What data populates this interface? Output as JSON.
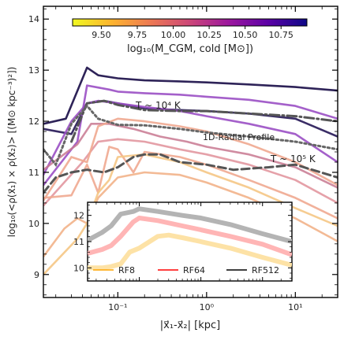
{
  "chart_data": {
    "type": "line",
    "xscale": "log",
    "xlim": [
      0.0145,
      30
    ],
    "ylim": [
      8.55,
      14.25
    ],
    "xlabel": "|x⃗₁-x⃗₂| [kpc]",
    "ylabel": "log₁₀(<ρ(x⃗₁) × ρ(x⃗₂)> [(M⊙ kpc⁻³)²])",
    "x_ticks": [
      0.1,
      1,
      10
    ],
    "x_tick_labels": [
      "10⁻¹",
      "10⁰",
      "10¹"
    ],
    "y_ticks": [
      9,
      10,
      11,
      12,
      13,
      14
    ],
    "grid": false,
    "colorbar": {
      "label": "log₁₀(M_CGM, cold [M⊙])",
      "range": [
        9.3,
        10.93
      ],
      "ticks": [
        "9.50",
        "9.75",
        "10.00",
        "10.25",
        "10.50",
        "10.75"
      ],
      "tick_values": [
        9.5,
        9.75,
        10.0,
        10.25,
        10.5,
        10.75
      ],
      "colormap": "plasma_r",
      "stops": [
        "#f0f921",
        "#fdb42f",
        "#ed7953",
        "#cc4778",
        "#9c179e",
        "#5c01a6",
        "#0d0887"
      ]
    },
    "series": [
      {
        "color": "#2e2358",
        "alpha": 1.0,
        "x": [
          0.0145,
          0.026,
          0.045,
          0.06,
          0.1,
          0.2,
          0.5,
          1,
          3,
          10,
          30
        ],
        "y": [
          11.95,
          12.05,
          13.05,
          12.9,
          12.84,
          12.8,
          12.78,
          12.76,
          12.72,
          12.67,
          12.6
        ]
      },
      {
        "color": "#3a2d66",
        "alpha": 1.0,
        "x": [
          0.0145,
          0.03,
          0.045,
          0.07,
          0.1,
          0.2,
          0.5,
          1,
          3,
          10,
          30
        ],
        "y": [
          11.85,
          11.75,
          12.35,
          12.4,
          12.35,
          12.25,
          12.22,
          12.2,
          12.15,
          12.05,
          11.7
        ]
      },
      {
        "color": "#9a4fc4",
        "alpha": 0.9,
        "x": [
          0.0145,
          0.035,
          0.045,
          0.08,
          0.1,
          0.2,
          0.5,
          1,
          3,
          10,
          30
        ],
        "y": [
          10.75,
          11.6,
          12.7,
          12.62,
          12.58,
          12.55,
          12.52,
          12.48,
          12.42,
          12.3,
          12.05
        ]
      },
      {
        "color": "#9a4fc4",
        "alpha": 0.9,
        "x": [
          0.0145,
          0.03,
          0.045,
          0.06,
          0.1,
          0.2,
          0.5,
          1,
          3,
          10,
          30
        ],
        "y": [
          10.95,
          12.0,
          12.35,
          12.4,
          12.35,
          12.28,
          12.2,
          12.1,
          11.95,
          11.75,
          11.2
        ]
      },
      {
        "color": "#c87890",
        "alpha": 0.85,
        "x": [
          0.0145,
          0.035,
          0.05,
          0.08,
          0.15,
          0.3,
          0.6,
          1,
          3,
          10,
          30
        ],
        "y": [
          11.05,
          11.55,
          11.95,
          11.95,
          11.85,
          11.7,
          11.6,
          11.5,
          11.35,
          11.1,
          10.7
        ]
      },
      {
        "color": "#e0909a",
        "alpha": 0.85,
        "x": [
          0.0145,
          0.04,
          0.06,
          0.1,
          0.2,
          0.5,
          1,
          3,
          10,
          30
        ],
        "y": [
          10.35,
          11.2,
          11.6,
          11.65,
          11.6,
          11.45,
          11.35,
          11.15,
          10.85,
          10.4
        ]
      },
      {
        "color": "#f0a890",
        "alpha": 0.9,
        "x": [
          0.0145,
          0.03,
          0.045,
          0.06,
          0.1,
          0.2,
          0.5,
          1,
          3,
          10,
          30
        ],
        "y": [
          10.45,
          11.3,
          11.2,
          11.9,
          12.05,
          12.0,
          11.9,
          11.8,
          11.55,
          11.2,
          10.75
        ]
      },
      {
        "color": "#f0a890",
        "alpha": 0.9,
        "x": [
          0.0145,
          0.03,
          0.045,
          0.06,
          0.08,
          0.1,
          0.15,
          0.2,
          0.5,
          1,
          3,
          10,
          30
        ],
        "y": [
          10.5,
          10.55,
          11.15,
          10.6,
          11.5,
          11.45,
          11.0,
          11.4,
          11.3,
          11.15,
          10.85,
          10.5,
          10.1
        ]
      },
      {
        "color": "#f2b38a",
        "alpha": 0.9,
        "x": [
          0.0145,
          0.025,
          0.035,
          0.045,
          0.06,
          0.1,
          0.2,
          0.5,
          1,
          3,
          10,
          30
        ],
        "y": [
          9.35,
          9.9,
          10.1,
          10.0,
          10.5,
          10.9,
          11.0,
          10.95,
          10.8,
          10.5,
          10.1,
          9.65
        ]
      },
      {
        "color": "#f5c685",
        "alpha": 0.9,
        "x": [
          0.0145,
          0.035,
          0.045,
          0.06,
          0.08,
          0.1,
          0.2,
          0.5,
          1,
          3,
          10,
          30
        ],
        "y": [
          9.0,
          9.7,
          10.0,
          10.6,
          10.85,
          11.3,
          11.35,
          11.2,
          11.0,
          10.7,
          10.3,
          9.95
        ]
      }
    ],
    "reference_lines": [
      {
        "label": "T ~ 10⁴ K",
        "style": "dash-dot",
        "color": "#555555",
        "x": [
          0.03,
          0.045,
          0.07,
          0.1,
          0.2,
          0.5,
          1,
          3,
          10,
          30
        ],
        "y": [
          11.6,
          12.35,
          12.4,
          12.32,
          12.22,
          12.2,
          12.2,
          12.15,
          12.1,
          12.0
        ]
      },
      {
        "label": "1D-Radial Profile",
        "style": "dotted",
        "color": "#666666",
        "x": [
          0.0145,
          0.02,
          0.03,
          0.045,
          0.06,
          0.1,
          0.2,
          0.5,
          1,
          3,
          10,
          30
        ],
        "y": [
          11.45,
          11.15,
          11.95,
          12.3,
          12.05,
          11.93,
          11.92,
          11.85,
          11.78,
          11.7,
          11.6,
          11.45
        ]
      },
      {
        "label": "T ~ 10⁵ K",
        "style": "dashed",
        "color": "#555555",
        "x": [
          0.0145,
          0.02,
          0.03,
          0.045,
          0.07,
          0.1,
          0.15,
          0.2,
          0.3,
          0.5,
          1,
          2,
          5,
          10,
          30
        ],
        "y": [
          10.6,
          10.9,
          11.0,
          11.05,
          11.0,
          11.1,
          11.3,
          11.35,
          11.35,
          11.2,
          11.15,
          11.05,
          11.1,
          11.15,
          10.9
        ]
      }
    ],
    "annotations": [
      "T ~ 10⁴ K",
      "1D-Radial Profile",
      "T ~ 10⁵ K"
    ],
    "inset": {
      "xscale": "log",
      "xlim": [
        0.0145,
        30
      ],
      "ylim": [
        9.5,
        12.5
      ],
      "y_ticks": [
        10,
        11,
        12
      ],
      "series": [
        {
          "name": "RF512",
          "legend_color": "#000000",
          "color": "#b4b4b4",
          "x": [
            0.0145,
            0.025,
            0.035,
            0.05,
            0.08,
            0.1,
            0.2,
            0.5,
            1,
            3,
            10,
            30
          ],
          "y": [
            11.05,
            11.35,
            11.6,
            12.05,
            12.15,
            12.25,
            12.15,
            12.0,
            11.9,
            11.65,
            11.3,
            11.0
          ]
        },
        {
          "name": "RF64",
          "legend_color": "#ff0000",
          "color": "#ffb5b5",
          "x": [
            0.0145,
            0.025,
            0.035,
            0.05,
            0.08,
            0.1,
            0.2,
            0.5,
            1,
            3,
            10,
            30
          ],
          "y": [
            10.55,
            10.7,
            10.85,
            11.2,
            11.75,
            11.9,
            11.8,
            11.6,
            11.45,
            11.2,
            10.9,
            10.5
          ]
        },
        {
          "name": "RF8",
          "legend_color": "#ffa500",
          "color": "#fde2a6",
          "x": [
            0.0145,
            0.025,
            0.035,
            0.05,
            0.07,
            0.1,
            0.2,
            0.3,
            0.5,
            1,
            3,
            10,
            30
          ],
          "y": [
            10.0,
            10.0,
            10.05,
            10.15,
            10.6,
            10.75,
            11.2,
            11.25,
            11.15,
            11.0,
            10.75,
            10.4,
            10.1
          ]
        }
      ]
    }
  }
}
